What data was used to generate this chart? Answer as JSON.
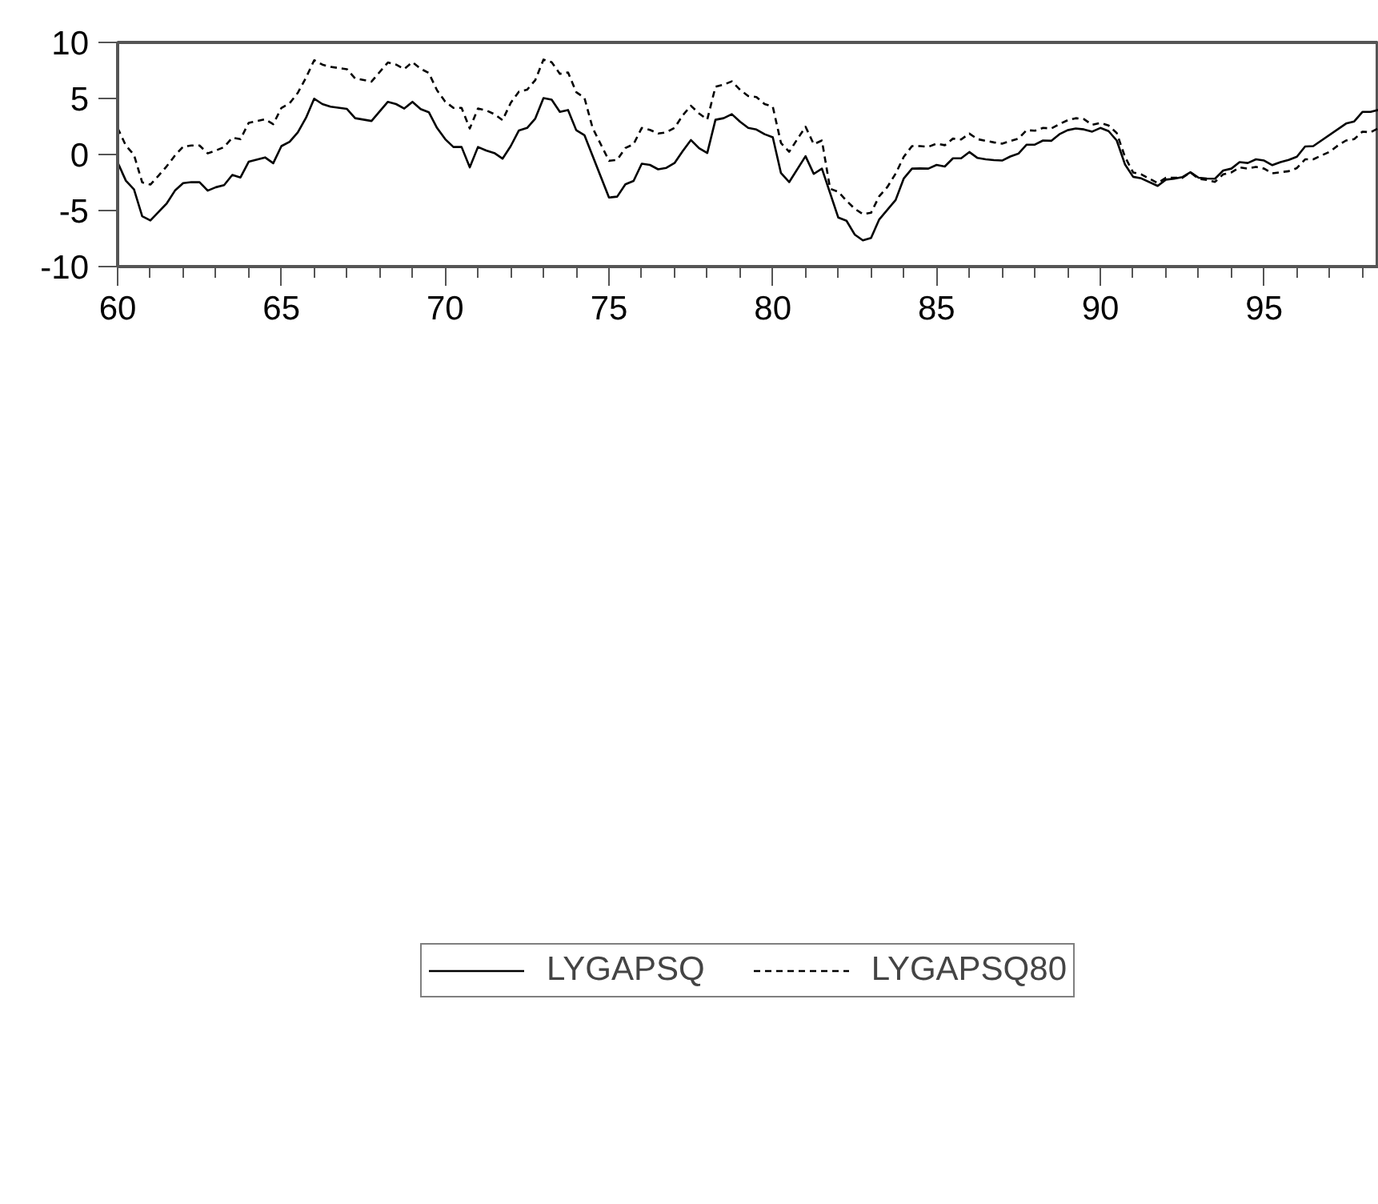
{
  "chart_data": {
    "type": "line",
    "legend": "bottom",
    "grid": false,
    "xlim": [
      60,
      98.5
    ],
    "ylim": [
      -10,
      10
    ],
    "yticks": [
      -10,
      -5,
      0,
      5,
      10
    ],
    "xticks": [
      60,
      {
        "value": 61,
        "label": null
      },
      {
        "value": 62,
        "label": null
      },
      {
        "value": 63,
        "label": null
      },
      {
        "value": 64,
        "label": null
      },
      65,
      {
        "value": 66,
        "label": null
      },
      {
        "value": 67,
        "label": null
      },
      {
        "value": 68,
        "label": null
      },
      {
        "value": 69,
        "label": null
      },
      70,
      {
        "value": 71,
        "label": null
      },
      {
        "value": 72,
        "label": null
      },
      {
        "value": 73,
        "label": null
      },
      {
        "value": 74,
        "label": null
      },
      75,
      {
        "value": 76,
        "label": null
      },
      {
        "value": 77,
        "label": null
      },
      {
        "value": 78,
        "label": null
      },
      {
        "value": 79,
        "label": null
      },
      80,
      {
        "value": 81,
        "label": null
      },
      {
        "value": 82,
        "label": null
      },
      {
        "value": 83,
        "label": null
      },
      {
        "value": 84,
        "label": null
      },
      85,
      {
        "value": 86,
        "label": null
      },
      {
        "value": 87,
        "label": null
      },
      {
        "value": 88,
        "label": null
      },
      {
        "value": 89,
        "label": null
      },
      90,
      {
        "value": 91,
        "label": null
      },
      {
        "value": 92,
        "label": null
      },
      {
        "value": 93,
        "label": null
      },
      {
        "value": 94,
        "label": null
      },
      95,
      {
        "value": 96,
        "label": null
      },
      {
        "value": 97,
        "label": null
      },
      {
        "value": 98,
        "label": null
      }
    ],
    "series": [
      {
        "name": "LYGAPSQ",
        "color": "#000000",
        "line_style": "solid",
        "x": [
          60.0,
          60.25,
          60.5,
          60.75,
          61.0,
          61.5,
          61.75,
          62.0,
          62.25,
          62.5,
          62.75,
          63.0,
          63.25,
          63.5,
          63.75,
          64.0,
          64.5,
          64.75,
          65.0,
          65.25,
          65.5,
          65.75,
          66.0,
          66.25,
          66.5,
          67.0,
          67.25,
          67.75,
          68.25,
          68.5,
          68.75,
          69.0,
          69.25,
          69.5,
          69.75,
          70.0,
          70.25,
          70.5,
          70.75,
          71.0,
          71.25,
          71.5,
          71.75,
          72.0,
          72.25,
          72.5,
          72.75,
          73.0,
          73.25,
          73.5,
          73.75,
          74.0,
          74.25,
          75.0,
          75.25,
          75.5,
          75.75,
          76.0,
          76.25,
          76.5,
          76.75,
          77.0,
          77.25,
          77.5,
          77.75,
          78.0,
          78.25,
          78.5,
          78.75,
          79.0,
          79.25,
          79.5,
          79.75,
          80.0,
          80.25,
          80.5,
          81.0,
          81.25,
          81.5,
          82.0,
          82.25,
          82.5,
          82.75,
          83.0,
          83.25,
          83.75,
          84.0,
          84.25,
          84.5,
          84.75,
          85.0,
          85.25,
          85.5,
          85.75,
          86.0,
          86.25,
          86.5,
          86.75,
          87.0,
          87.25,
          87.5,
          87.75,
          88.0,
          88.25,
          88.5,
          88.75,
          89.0,
          89.25,
          89.5,
          89.75,
          90.0,
          90.25,
          90.5,
          90.75,
          91.0,
          91.25,
          91.75,
          92.0,
          92.25,
          92.5,
          92.75,
          93.0,
          93.25,
          93.5,
          93.75,
          94.0,
          94.25,
          94.5,
          94.75,
          95.0,
          95.25,
          95.5,
          95.75,
          96.0,
          96.25,
          96.5,
          97.5,
          97.75,
          98.0,
          98.25,
          98.5
        ],
        "values": [
          -0.7,
          -2.33,
          -3.11,
          -5.51,
          -5.88,
          -4.36,
          -3.22,
          -2.55,
          -2.47,
          -2.47,
          -3.22,
          -2.92,
          -2.73,
          -1.82,
          -2.05,
          -0.65,
          -0.26,
          -0.78,
          0.75,
          1.14,
          1.98,
          3.27,
          4.98,
          4.5,
          4.27,
          4.07,
          3.24,
          2.99,
          4.7,
          4.5,
          4.1,
          4.7,
          4.05,
          3.77,
          2.37,
          1.37,
          0.67,
          0.67,
          -1.15,
          0.67,
          0.36,
          0.13,
          -0.37,
          0.75,
          2.15,
          2.37,
          3.21,
          5.03,
          4.89,
          3.8,
          3.97,
          2.17,
          1.73,
          -3.84,
          -3.76,
          -2.66,
          -2.36,
          -0.82,
          -0.93,
          -1.32,
          -1.19,
          -0.76,
          0.3,
          1.29,
          0.56,
          0.13,
          3.1,
          3.24,
          3.6,
          2.93,
          2.37,
          2.23,
          1.81,
          1.53,
          -1.66,
          -2.46,
          -0.15,
          -1.73,
          -1.26,
          -5.63,
          -5.91,
          -7.14,
          -7.66,
          -7.44,
          -5.79,
          -4.06,
          -2.13,
          -1.26,
          -1.24,
          -1.26,
          -0.93,
          -1.07,
          -0.34,
          -0.34,
          0.22,
          -0.31,
          -0.43,
          -0.5,
          -0.54,
          -0.18,
          0.08,
          0.88,
          0.88,
          1.25,
          1.22,
          1.81,
          2.17,
          2.32,
          2.24,
          2.04,
          2.37,
          2.09,
          1.25,
          -0.87,
          -1.99,
          -2.13,
          -2.8,
          -2.24,
          -2.16,
          -2.02,
          -1.58,
          -2.07,
          -2.14,
          -2.16,
          -1.43,
          -1.26,
          -0.68,
          -0.76,
          -0.43,
          -0.54,
          -0.95,
          -0.68,
          -0.48,
          -0.2,
          0.71,
          0.75,
          2.76,
          2.95,
          3.8,
          3.8,
          3.99
        ]
      },
      {
        "name": "LYGAPSQ80",
        "color": "#000000",
        "line_style": "dashed",
        "x": [
          60.0,
          60.25,
          60.5,
          60.75,
          61.0,
          61.25,
          61.5,
          61.75,
          62.0,
          62.25,
          62.5,
          62.75,
          63.0,
          63.25,
          63.5,
          63.75,
          64.0,
          64.5,
          64.75,
          65.0,
          65.25,
          65.5,
          65.75,
          66.0,
          66.25,
          66.5,
          67.0,
          67.25,
          67.75,
          68.25,
          68.5,
          68.75,
          69.0,
          69.25,
          69.5,
          69.75,
          70.0,
          70.25,
          70.5,
          70.75,
          71.0,
          71.25,
          71.5,
          71.75,
          72.0,
          72.25,
          72.5,
          72.75,
          73.0,
          73.25,
          73.5,
          73.75,
          74.0,
          74.25,
          74.5,
          75.0,
          75.25,
          75.5,
          75.75,
          76.0,
          76.25,
          76.5,
          76.75,
          77.0,
          77.25,
          77.5,
          77.75,
          78.0,
          78.25,
          78.5,
          78.75,
          79.0,
          79.25,
          79.5,
          79.75,
          80.0,
          80.25,
          80.5,
          80.75,
          81.0,
          81.25,
          81.5,
          81.75,
          82.0,
          82.25,
          82.5,
          82.75,
          83.0,
          83.25,
          83.5,
          83.75,
          84.0,
          84.25,
          84.5,
          84.75,
          85.0,
          85.25,
          85.5,
          85.75,
          86.0,
          86.25,
          86.75,
          87.0,
          87.25,
          87.5,
          87.75,
          88.0,
          88.25,
          88.5,
          88.75,
          89.0,
          89.25,
          89.5,
          89.75,
          90.0,
          90.25,
          90.5,
          90.75,
          91.0,
          91.25,
          91.5,
          91.75,
          92.0,
          92.25,
          92.5,
          92.75,
          93.0,
          93.25,
          93.5,
          93.75,
          94.0,
          94.25,
          94.5,
          94.75,
          95.0,
          95.25,
          95.5,
          95.75,
          96.0,
          96.25,
          96.5,
          96.75,
          97.0,
          97.25,
          97.5,
          97.75,
          98.0,
          98.25,
          98.5
        ],
        "values": [
          2.37,
          0.8,
          -0.03,
          -2.49,
          -2.68,
          -1.88,
          -1.04,
          -0.09,
          0.71,
          0.8,
          0.8,
          0.1,
          0.36,
          0.66,
          1.5,
          1.37,
          2.82,
          3.15,
          2.71,
          4.16,
          4.57,
          5.5,
          6.85,
          8.41,
          8.02,
          7.82,
          7.61,
          6.79,
          6.51,
          8.21,
          8.02,
          7.63,
          8.24,
          7.65,
          7.27,
          5.73,
          4.72,
          4.16,
          4.16,
          2.32,
          4.1,
          3.94,
          3.6,
          3.06,
          4.61,
          5.61,
          5.78,
          6.64,
          8.47,
          8.24,
          7.2,
          7.32,
          5.56,
          5.06,
          2.37,
          -0.56,
          -0.48,
          0.58,
          0.92,
          2.37,
          2.2,
          1.87,
          1.98,
          2.37,
          3.49,
          4.35,
          3.66,
          3.12,
          6.04,
          6.23,
          6.53,
          5.78,
          5.22,
          5.13,
          4.5,
          4.27,
          1.03,
          0.24,
          1.37,
          2.48,
          0.92,
          1.25,
          -3.05,
          -3.33,
          -4.12,
          -4.84,
          -5.32,
          -5.2,
          -3.72,
          -2.89,
          -1.71,
          -0.2,
          0.75,
          0.75,
          0.69,
          0.97,
          0.83,
          1.42,
          1.34,
          1.87,
          1.37,
          1.08,
          0.97,
          1.2,
          1.42,
          2.17,
          2.12,
          2.37,
          2.32,
          2.71,
          3.06,
          3.24,
          3.15,
          2.65,
          2.82,
          2.59,
          1.92,
          -0.2,
          -1.6,
          -1.77,
          -2.16,
          -2.55,
          -2.07,
          -2.08,
          -2.08,
          -1.6,
          -2.16,
          -2.27,
          -2.44,
          -1.77,
          -1.6,
          -1.15,
          -1.26,
          -1.1,
          -1.26,
          -1.68,
          -1.58,
          -1.49,
          -1.21,
          -0.43,
          -0.43,
          -0.09,
          0.24,
          0.8,
          1.25,
          1.37,
          2.04,
          1.98,
          2.37
        ]
      }
    ]
  }
}
